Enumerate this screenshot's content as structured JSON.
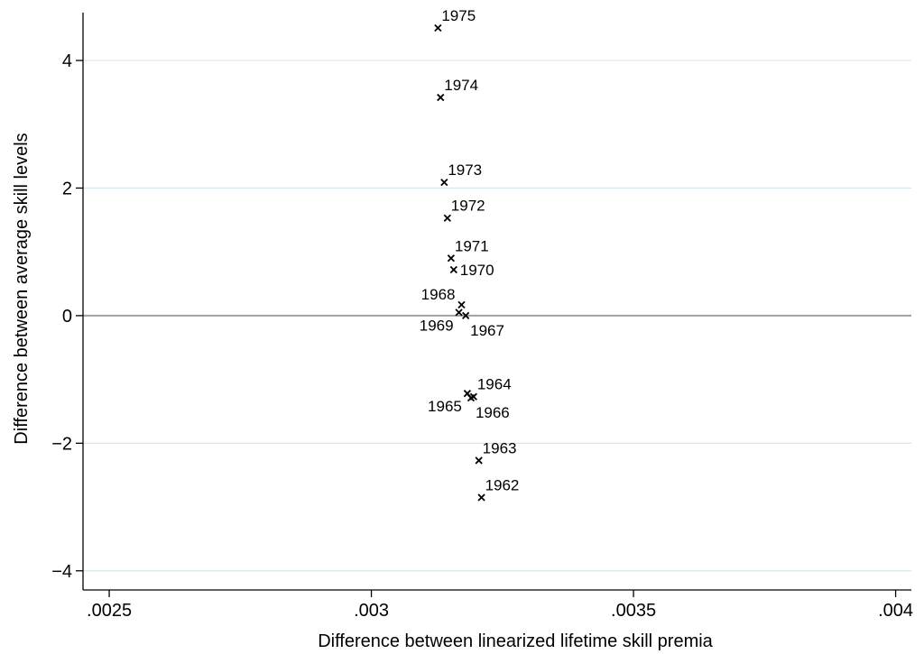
{
  "chart_data": {
    "type": "scatter",
    "xlabel": "Difference between linearized lifetime skill premia",
    "ylabel": "Difference between average skill levels",
    "xlim": [
      0.00245,
      0.00403
    ],
    "ylim": [
      -4.3,
      4.75
    ],
    "x_ticks": [
      0.0025,
      0.003,
      0.0035,
      0.004
    ],
    "x_tick_labels": [
      ".0025",
      ".003",
      ".0035",
      ".004"
    ],
    "y_ticks": [
      -4,
      -2,
      0,
      2,
      4
    ],
    "y_tick_labels": [
      "−4",
      "−2",
      "0",
      "2",
      "4"
    ],
    "grid": true,
    "reference_line_y": 0,
    "marker": "x",
    "colors": {
      "grid": "#d9e6ec",
      "refline": "#a0a0a0",
      "axis": "#000000",
      "marker": "#000000"
    },
    "points": [
      {
        "label": "1962",
        "x": 0.00321,
        "y": -2.85,
        "pos": "ne"
      },
      {
        "label": "1963",
        "x": 0.003205,
        "y": -2.27,
        "pos": "ne"
      },
      {
        "label": "1964",
        "x": 0.003195,
        "y": -1.27,
        "pos": "ne"
      },
      {
        "label": "1965",
        "x": 0.003183,
        "y": -1.22,
        "pos": "sw"
      },
      {
        "label": "1966",
        "x": 0.00319,
        "y": -1.29,
        "pos": "se"
      },
      {
        "label": "1967",
        "x": 0.00318,
        "y": 0.0,
        "pos": "se"
      },
      {
        "label": "1968",
        "x": 0.003172,
        "y": 0.17,
        "pos": "nw"
      },
      {
        "label": "1969",
        "x": 0.003167,
        "y": 0.05,
        "pos": "sw"
      },
      {
        "label": "1970",
        "x": 0.003157,
        "y": 0.72,
        "pos": "e"
      },
      {
        "label": "1971",
        "x": 0.003152,
        "y": 0.9,
        "pos": "ne"
      },
      {
        "label": "1972",
        "x": 0.003145,
        "y": 1.53,
        "pos": "ne"
      },
      {
        "label": "1973",
        "x": 0.003139,
        "y": 2.09,
        "pos": "ne"
      },
      {
        "label": "1974",
        "x": 0.003132,
        "y": 3.42,
        "pos": "ne"
      },
      {
        "label": "1975",
        "x": 0.003127,
        "y": 4.51,
        "pos": "ne"
      }
    ]
  }
}
